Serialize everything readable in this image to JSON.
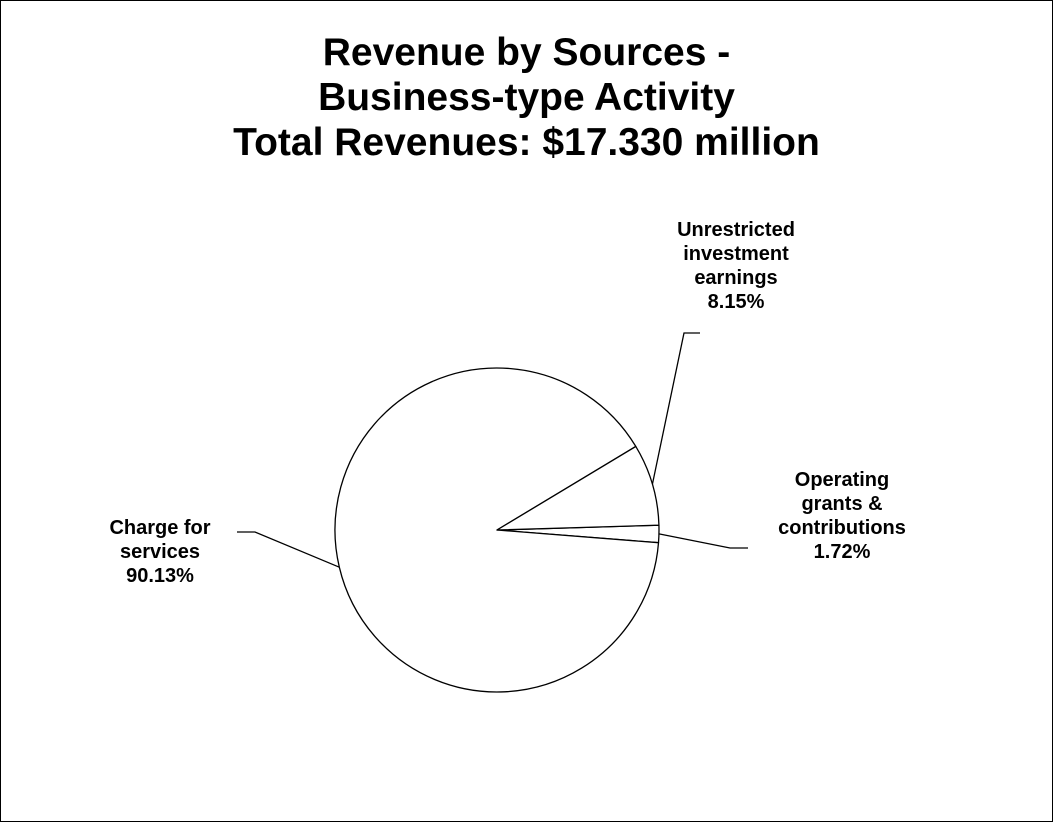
{
  "chart_data": {
    "type": "pie",
    "title": [
      "Revenue by Sources -",
      "Business-type Activity",
      "Total Revenues: $17.330 million"
    ],
    "categories": [
      "Charge for services",
      "Unrestricted investment earnings",
      "Operating grants & contributions"
    ],
    "values": [
      90.13,
      8.15,
      1.72
    ],
    "labels": [
      {
        "lines": [
          "Charge for",
          "services"
        ],
        "value": "90.13%"
      },
      {
        "lines": [
          "Unrestricted",
          "investment",
          "earnings"
        ],
        "value": "8.15%"
      },
      {
        "lines": [
          "Operating",
          "grants &",
          "contributions"
        ],
        "value": "1.72%"
      }
    ],
    "legend": "none",
    "slice_fill": "#ffffff",
    "slice_stroke": "#000000"
  }
}
